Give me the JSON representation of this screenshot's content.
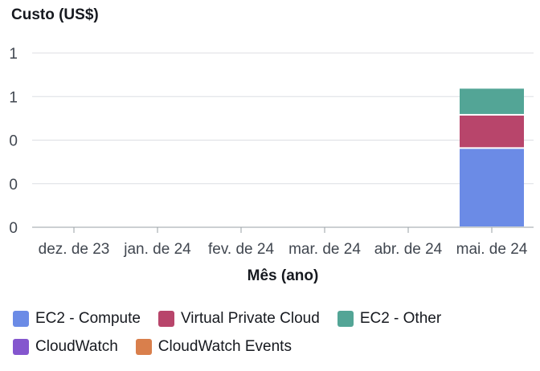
{
  "chart_data": {
    "type": "bar",
    "stacked": true,
    "ylabel": "Custo (US$)",
    "xlabel": "Mês (ano)",
    "categories": [
      "dez. de 23",
      "jan. de 24",
      "fev. de 24",
      "mar. de 24",
      "abr. de 24",
      "mai. de 24"
    ],
    "y_tick_labels": [
      "0",
      "0",
      "0",
      "1",
      "1"
    ],
    "ylim": [
      0,
      1.1
    ],
    "grid": true,
    "legend_position": "bottom",
    "series": [
      {
        "name": "EC2 - Compute",
        "color": "#6b8be6",
        "values": [
          0,
          0,
          0,
          0,
          0,
          0.5
        ]
      },
      {
        "name": "Virtual Private Cloud",
        "color": "#b8456b",
        "values": [
          0,
          0,
          0,
          0,
          0,
          0.21
        ]
      },
      {
        "name": "EC2 - Other",
        "color": "#53a596",
        "values": [
          0,
          0,
          0,
          0,
          0,
          0.17
        ]
      },
      {
        "name": "CloudWatch",
        "color": "#8456ce",
        "values": [
          0,
          0,
          0,
          0,
          0,
          0
        ]
      },
      {
        "name": "CloudWatch Events",
        "color": "#d97f4c",
        "values": [
          0,
          0,
          0,
          0,
          0,
          0
        ]
      }
    ]
  }
}
